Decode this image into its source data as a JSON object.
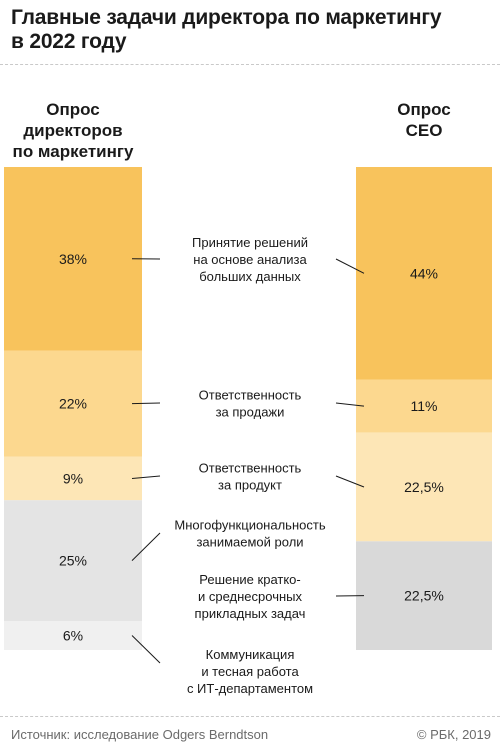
{
  "title_lines": [
    "Главные задачи директора по маркетингу",
    "в 2022 году"
  ],
  "columns": {
    "left_header": [
      "Опрос",
      "директоров",
      "по маркетингу"
    ],
    "right_header": [
      "Опрос",
      "CEO"
    ]
  },
  "colors": {
    "tier1": "#f8c35c",
    "tier2": "#fcd88f",
    "tier3": "#fde6b6",
    "gray1": "#e4e4e4",
    "gray2": "#f0f0f0",
    "gray_ceo": "#d9d9d9"
  },
  "chart_data": {
    "type": "stacked-bar",
    "categories": [
      "Принятие решений на основе анализа больших данных",
      "Ответственность за продажи",
      "Ответственность за продукт",
      "Многофункциональность занимаемой роли",
      "Решение кратко- и среднесрочных прикладных задач",
      "Коммуникация и тесная работа с ИТ-департаментом"
    ],
    "category_lines": [
      [
        "Принятие решений",
        "на основе анализа",
        "больших данных"
      ],
      [
        "Ответственность",
        "за продажи"
      ],
      [
        "Ответственность",
        "за продукт"
      ],
      [
        "Многофункциональность",
        "занимаемой роли"
      ],
      [
        "Решение кратко-",
        "и среднесрочных",
        "прикладных задач"
      ],
      [
        "Коммуникация",
        "и тесная работа",
        "с ИТ-департаментом"
      ]
    ],
    "series": [
      {
        "name": "Опрос директоров по маркетингу",
        "segments": [
          {
            "category": 0,
            "value": 38,
            "label": "38%",
            "color": "#f8c35c"
          },
          {
            "category": 1,
            "value": 22,
            "label": "22%",
            "color": "#fcd88f"
          },
          {
            "category": 2,
            "value": 9,
            "label": "9%",
            "color": "#fde6b6"
          },
          {
            "category": 3,
            "value": 25,
            "label": "25%",
            "color": "#e4e4e4"
          },
          {
            "category": 5,
            "value": 6,
            "label": "6%",
            "color": "#f0f0f0"
          }
        ]
      },
      {
        "name": "Опрос CEO",
        "segments": [
          {
            "category": 0,
            "value": 44,
            "label": "44%",
            "color": "#f8c35c"
          },
          {
            "category": 1,
            "value": 11,
            "label": "11%",
            "color": "#fcd88f"
          },
          {
            "category": 2,
            "value": 22.5,
            "label": "22,5%",
            "color": "#fde6b6"
          },
          {
            "category": 4,
            "value": 22.5,
            "label": "22,5%",
            "color": "#d9d9d9"
          }
        ]
      }
    ],
    "total": 100
  },
  "footer": {
    "source": "Источник: исследование Odgers Berndtson",
    "copyright": "© РБК, 2019"
  }
}
